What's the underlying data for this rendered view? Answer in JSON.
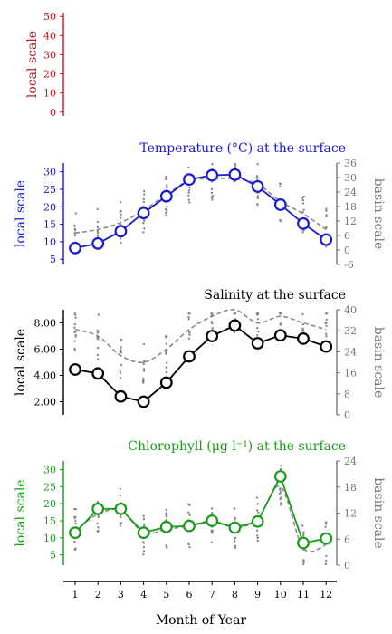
{
  "figure": {
    "xlabel": "Month of Year",
    "months": [
      1,
      2,
      3,
      4,
      5,
      6,
      7,
      8,
      9,
      10,
      11,
      12
    ]
  },
  "colors": {
    "red": "#c0181e",
    "blue": "#1a1ad0",
    "black": "#000000",
    "green": "#1a9a1a",
    "gray": "#888888"
  },
  "chart_data": [
    {
      "type": "line",
      "title": "",
      "ylabel": "local scale",
      "y_ticks": [
        0,
        10,
        20,
        30,
        40,
        50
      ],
      "ylim": [
        -2,
        52
      ],
      "series": []
    },
    {
      "type": "line",
      "title": "Temperature (°C) at the surface",
      "ylabel": "local scale",
      "ylabel_right": "basin scale",
      "x": [
        1,
        2,
        3,
        4,
        5,
        6,
        7,
        8,
        9,
        10,
        11,
        12
      ],
      "y_ticks": [
        5,
        10,
        15,
        20,
        25,
        30
      ],
      "ylim": [
        3.5,
        32.5
      ],
      "y2_ticks": [
        -6,
        0,
        6,
        12,
        18,
        24,
        30,
        36
      ],
      "y2lim": [
        -6,
        36
      ],
      "series": [
        {
          "name": "local",
          "values": [
            8.2,
            9.5,
            13.0,
            18.2,
            23.0,
            27.8,
            29.0,
            29.2,
            25.8,
            20.6,
            15.2,
            10.6
          ]
        },
        {
          "name": "basin",
          "values": [
            12.5,
            13.5,
            15.5,
            19.0,
            23.5,
            27.5,
            28.0,
            28.0,
            26.5,
            21.5,
            18.0,
            13.5
          ]
        }
      ]
    },
    {
      "type": "line",
      "title": "Salinity at the surface",
      "ylabel": "local scale",
      "ylabel_right": "basin scale",
      "x": [
        1,
        2,
        3,
        4,
        5,
        6,
        7,
        8,
        9,
        10,
        11,
        12
      ],
      "y_ticks": [
        "2.00",
        "4.00",
        "6.00",
        "8.00"
      ],
      "ylim": [
        1.0,
        9.0
      ],
      "y2_ticks": [
        0,
        8,
        16,
        24,
        32,
        40
      ],
      "y2lim": [
        0,
        40
      ],
      "series": [
        {
          "name": "local",
          "values": [
            4.45,
            4.15,
            2.4,
            2.0,
            3.45,
            5.45,
            7.0,
            7.8,
            6.45,
            7.05,
            6.8,
            6.2
          ]
        },
        {
          "name": "basin",
          "values": [
            7.5,
            7.0,
            5.5,
            5.0,
            6.0,
            7.5,
            8.5,
            9.0,
            8.0,
            8.5,
            8.0,
            7.5
          ]
        }
      ]
    },
    {
      "type": "line",
      "title": "Chlorophyll (μg l⁻¹) at the surface",
      "ylabel": "local scale",
      "ylabel_right": "basin scale",
      "x": [
        1,
        2,
        3,
        4,
        5,
        6,
        7,
        8,
        9,
        10,
        11,
        12
      ],
      "y_ticks": [
        5,
        10,
        15,
        20,
        25,
        30
      ],
      "ylim": [
        2.0,
        32.5
      ],
      "y2_ticks": [
        0,
        6,
        12,
        18,
        24
      ],
      "y2lim": [
        0,
        24
      ],
      "series": [
        {
          "name": "local",
          "values": [
            11.5,
            18.5,
            18.5,
            11.5,
            13.2,
            13.5,
            15.0,
            13.0,
            14.8,
            28.0,
            8.5,
            9.8
          ]
        },
        {
          "name": "basin",
          "values": [
            12.0,
            17.0,
            18.0,
            11.5,
            12.5,
            13.5,
            15.0,
            13.0,
            15.5,
            25.0,
            7.0,
            8.0
          ]
        }
      ]
    }
  ]
}
